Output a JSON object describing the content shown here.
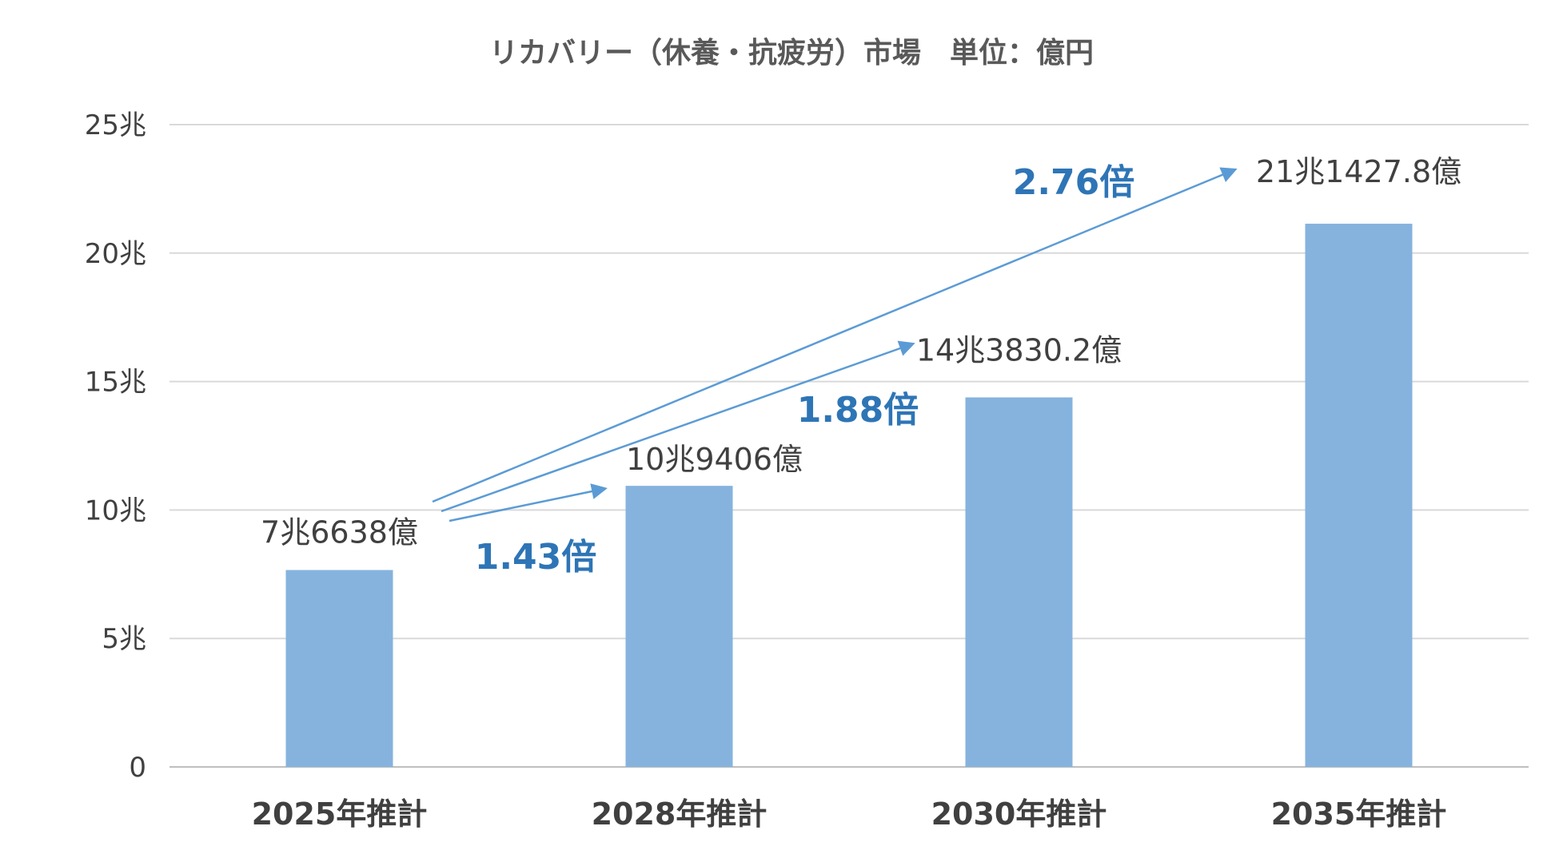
{
  "chart_data": {
    "type": "bar",
    "title": "リカバリー（休養・抗疲労）市場　単位：億円",
    "xlabel": "",
    "ylabel": "",
    "categories": [
      "2025年推計",
      "2028年推計",
      "2030年推計",
      "2035年推計"
    ],
    "values": [
      76638,
      109406,
      143830.2,
      211427.8
    ],
    "data_labels": [
      "7兆6638億",
      "10兆9406億",
      "14兆3830.2億",
      "21兆1427.8億"
    ],
    "ylim": [
      0,
      250000
    ],
    "yticks": [
      0,
      50000,
      100000,
      150000,
      200000,
      250000
    ],
    "ytick_labels": [
      "0",
      "5兆",
      "10兆",
      "15兆",
      "20兆",
      "25兆"
    ],
    "grid": true,
    "legend": "none",
    "bar_color": "#85b3de",
    "annotations": [
      {
        "text": "1.43倍",
        "from": "2025年推計",
        "to": "2028年推計"
      },
      {
        "text": "1.88倍",
        "from": "2025年推計",
        "to": "2030年推計"
      },
      {
        "text": "2.76倍",
        "from": "2025年推計",
        "to": "2035年推計"
      }
    ],
    "annotation_color": "#2e75b6",
    "arrow_color": "#5b9bd5"
  }
}
